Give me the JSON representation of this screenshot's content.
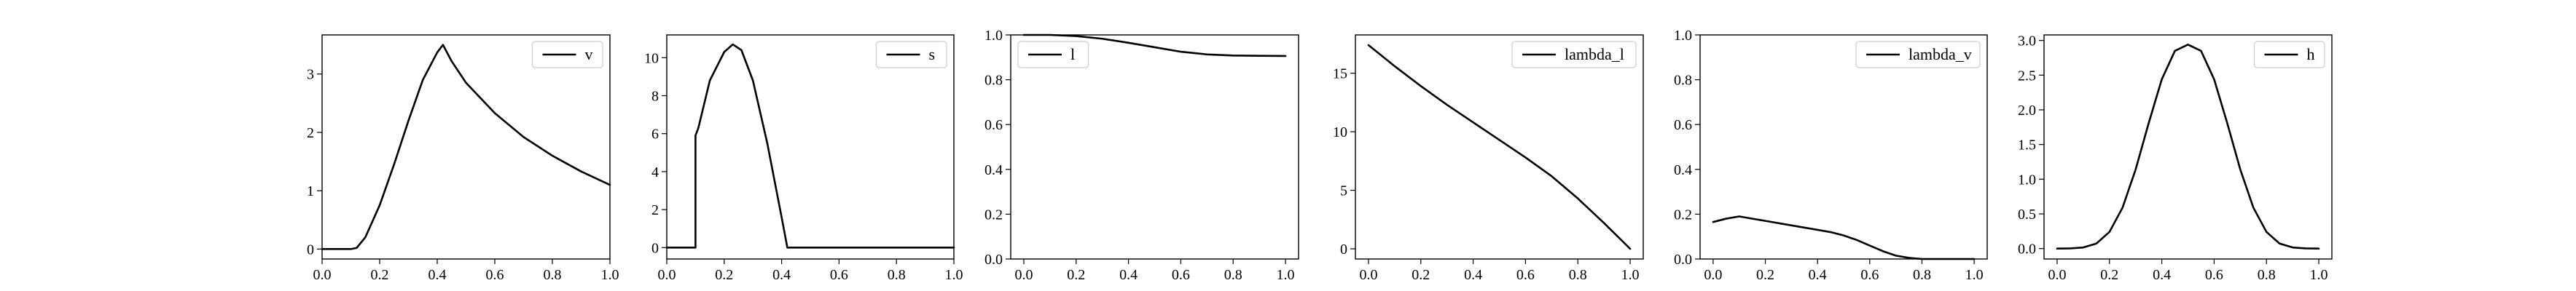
{
  "chart_data": [
    {
      "type": "line",
      "xlim": [
        0,
        1
      ],
      "ylim": [
        -0.17,
        3.67
      ],
      "xticks": [
        0.0,
        0.2,
        0.4,
        0.6,
        0.8,
        1.0
      ],
      "xtick_labels": [
        "0.0",
        "0.2",
        "0.4",
        "0.6",
        "0.8",
        "1.0"
      ],
      "yticks": [
        0,
        1,
        2,
        3
      ],
      "ytick_labels": [
        "0",
        "1",
        "2",
        "3"
      ],
      "legend": "top-right",
      "grid": false,
      "series": [
        {
          "name": "v",
          "color": "#000000",
          "x": [
            0,
            0.1,
            0.12,
            0.15,
            0.2,
            0.25,
            0.3,
            0.35,
            0.4,
            0.42,
            0.45,
            0.5,
            0.6,
            0.7,
            0.8,
            0.9,
            1.0
          ],
          "y": [
            0,
            0,
            0.02,
            0.2,
            0.75,
            1.45,
            2.2,
            2.9,
            3.37,
            3.5,
            3.22,
            2.85,
            2.33,
            1.92,
            1.6,
            1.33,
            1.1
          ]
        }
      ]
    },
    {
      "type": "line",
      "xlim": [
        0,
        1
      ],
      "ylim": [
        -0.6,
        11.2
      ],
      "xticks": [
        0.0,
        0.2,
        0.4,
        0.6,
        0.8,
        1.0
      ],
      "xtick_labels": [
        "0.0",
        "0.2",
        "0.4",
        "0.6",
        "0.8",
        "1.0"
      ],
      "yticks": [
        0,
        2,
        4,
        6,
        8,
        10
      ],
      "ytick_labels": [
        "0",
        "2",
        "4",
        "6",
        "8",
        "10"
      ],
      "legend": "top-right",
      "grid": false,
      "series": [
        {
          "name": "s",
          "color": "#000000",
          "x": [
            0,
            0.1,
            0.1,
            0.11,
            0.15,
            0.2,
            0.23,
            0.26,
            0.3,
            0.35,
            0.4,
            0.42,
            0.5,
            0.6,
            0.7,
            0.8,
            0.9,
            1.0
          ],
          "y": [
            0,
            0,
            5.9,
            6.3,
            8.8,
            10.3,
            10.7,
            10.4,
            8.8,
            5.5,
            1.6,
            0,
            0,
            0,
            0,
            0,
            0,
            0
          ]
        }
      ]
    },
    {
      "type": "line",
      "xlim": [
        -0.05,
        1.05
      ],
      "ylim": [
        0.0,
        1.0
      ],
      "xticks": [
        0.0,
        0.2,
        0.4,
        0.6,
        0.8,
        1.0
      ],
      "xtick_labels": [
        "0.0",
        "0.2",
        "0.4",
        "0.6",
        "0.8",
        "1.0"
      ],
      "yticks": [
        0.0,
        0.2,
        0.4,
        0.6,
        0.8,
        1.0
      ],
      "ytick_labels": [
        "0.0",
        "0.2",
        "0.4",
        "0.6",
        "0.8",
        "1.0"
      ],
      "legend": "top-left",
      "grid": false,
      "series": [
        {
          "name": "l",
          "color": "#000000",
          "x": [
            0,
            0.1,
            0.2,
            0.3,
            0.4,
            0.5,
            0.6,
            0.7,
            0.8,
            0.9,
            1.0
          ],
          "y": [
            1.0,
            1.0,
            0.995,
            0.983,
            0.965,
            0.945,
            0.925,
            0.913,
            0.908,
            0.907,
            0.906
          ]
        }
      ]
    },
    {
      "type": "line",
      "xlim": [
        -0.05,
        1.05
      ],
      "ylim": [
        -0.87,
        18.27
      ],
      "xticks": [
        0.0,
        0.2,
        0.4,
        0.6,
        0.8,
        1.0
      ],
      "xtick_labels": [
        "0.0",
        "0.2",
        "0.4",
        "0.6",
        "0.8",
        "1.0"
      ],
      "yticks": [
        0,
        5,
        10,
        15
      ],
      "ytick_labels": [
        "0",
        "5",
        "10",
        "15"
      ],
      "legend": "top-right",
      "grid": false,
      "series": [
        {
          "name": "lambda_l",
          "color": "#000000",
          "x": [
            0,
            0.1,
            0.2,
            0.3,
            0.4,
            0.5,
            0.6,
            0.7,
            0.8,
            0.9,
            1.0
          ],
          "y": [
            17.4,
            15.6,
            13.9,
            12.3,
            10.8,
            9.3,
            7.8,
            6.2,
            4.3,
            2.2,
            0
          ]
        }
      ]
    },
    {
      "type": "line",
      "xlim": [
        -0.05,
        1.05
      ],
      "ylim": [
        0.0,
        1.0
      ],
      "xticks": [
        0.0,
        0.2,
        0.4,
        0.6,
        0.8,
        1.0
      ],
      "xtick_labels": [
        "0.0",
        "0.2",
        "0.4",
        "0.6",
        "0.8",
        "1.0"
      ],
      "yticks": [
        0.0,
        0.2,
        0.4,
        0.6,
        0.8,
        1.0
      ],
      "ytick_labels": [
        "0.0",
        "0.2",
        "0.4",
        "0.6",
        "0.8",
        "1.0"
      ],
      "legend": "top-right",
      "grid": false,
      "series": [
        {
          "name": "lambda_v",
          "color": "#000000",
          "x": [
            0,
            0.05,
            0.1,
            0.2,
            0.3,
            0.4,
            0.45,
            0.5,
            0.55,
            0.6,
            0.65,
            0.7,
            0.75,
            0.8,
            0.9,
            1.0
          ],
          "y": [
            0.165,
            0.18,
            0.19,
            0.17,
            0.15,
            0.13,
            0.12,
            0.105,
            0.085,
            0.06,
            0.035,
            0.015,
            0.005,
            0.0,
            0.0,
            0.0
          ]
        }
      ]
    },
    {
      "type": "line",
      "xlim": [
        -0.05,
        1.05
      ],
      "ylim": [
        -0.15,
        3.08
      ],
      "xticks": [
        0.0,
        0.2,
        0.4,
        0.6,
        0.8,
        1.0
      ],
      "xtick_labels": [
        "0.0",
        "0.2",
        "0.4",
        "0.6",
        "0.8",
        "1.0"
      ],
      "yticks": [
        0.0,
        0.5,
        1.0,
        1.5,
        2.0,
        2.5,
        3.0
      ],
      "ytick_labels": [
        "0.0",
        "0.5",
        "1.0",
        "1.5",
        "2.0",
        "2.5",
        "3.0"
      ],
      "legend": "top-right",
      "grid": false,
      "series": [
        {
          "name": "h",
          "color": "#000000",
          "x": [
            0,
            0.05,
            0.1,
            0.15,
            0.2,
            0.25,
            0.3,
            0.35,
            0.4,
            0.45,
            0.5,
            0.55,
            0.6,
            0.65,
            0.7,
            0.75,
            0.8,
            0.85,
            0.9,
            0.95,
            1.0
          ],
          "y": [
            0,
            0.003,
            0.016,
            0.073,
            0.24,
            0.59,
            1.14,
            1.81,
            2.44,
            2.85,
            2.94,
            2.85,
            2.44,
            1.81,
            1.14,
            0.59,
            0.24,
            0.073,
            0.016,
            0.003,
            0
          ]
        }
      ]
    }
  ]
}
